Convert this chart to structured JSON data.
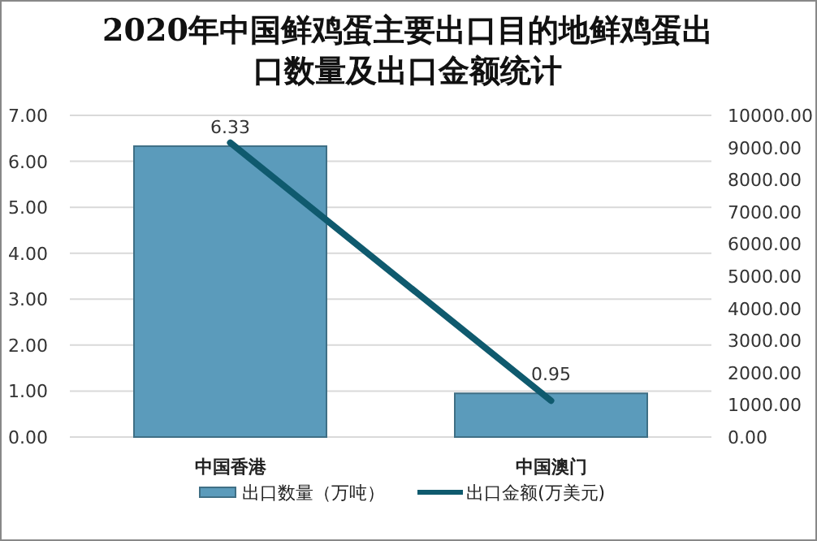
{
  "chart_data": {
    "type": "bar",
    "title": "2020年中国鲜鸡蛋主要出口目的地鲜鸡蛋出口数量及出口金额统计",
    "categories": [
      "中国香港",
      "中国澳门"
    ],
    "series": [
      {
        "name": "出口数量（万吨）",
        "color": "#5b9bbb",
        "values": [
          6.33,
          0.95
        ],
        "value_labels": [
          "6.33",
          "0.95"
        ]
      },
      {
        "name": "出口金额(万美元)",
        "type": "line",
        "axis": "y2",
        "color": "#0f5a6e",
        "values": [
          9150,
          1130
        ]
      }
    ],
    "ylim": [
      0,
      7
    ],
    "yticks": [
      {
        "value": 0,
        "label": "0.00"
      },
      {
        "value": 1,
        "label": "1.00"
      },
      {
        "value": 2,
        "label": "2.00"
      },
      {
        "value": 3,
        "label": "3.00"
      },
      {
        "value": 4,
        "label": "4.00"
      },
      {
        "value": 5,
        "label": "5.00"
      },
      {
        "value": 6,
        "label": "6.00"
      },
      {
        "value": 7,
        "label": "7.00"
      }
    ],
    "y2lim": [
      0,
      10000
    ],
    "y2ticks": [
      {
        "value": 0,
        "label": "0.00"
      },
      {
        "value": 1000,
        "label": "1000.00"
      },
      {
        "value": 2000,
        "label": "2000.00"
      },
      {
        "value": 3000,
        "label": "3000.00"
      },
      {
        "value": 4000,
        "label": "4000.00"
      },
      {
        "value": 5000,
        "label": "5000.00"
      },
      {
        "value": 6000,
        "label": "6000.00"
      },
      {
        "value": 7000,
        "label": "7000.00"
      },
      {
        "value": 8000,
        "label": "8000.00"
      },
      {
        "value": 9000,
        "label": "9000.00"
      },
      {
        "value": 10000,
        "label": "10000.00"
      }
    ],
    "grid": "y",
    "legend": "bottom"
  }
}
